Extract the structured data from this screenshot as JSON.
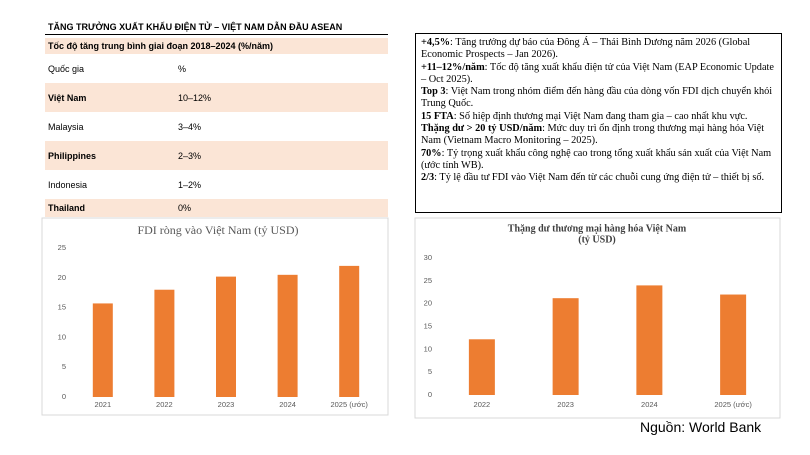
{
  "table": {
    "title": "TĂNG TRƯỞNG XUẤT KHẨU ĐIỆN TỬ  – VIỆT NAM DẪN ĐẦU ASEAN",
    "subtitle": "Tốc độ tăng trung bình giai đoạn 2018–2024 (%/năm)",
    "header": [
      "Quốc gia",
      "%"
    ],
    "rows": [
      [
        "Việt Nam",
        "10–12%"
      ],
      [
        "Malaysia",
        "3–4%"
      ],
      [
        "Philippines",
        "2–3%"
      ],
      [
        "Indonesia",
        "1–2%"
      ],
      [
        "Thailand",
        "0%"
      ]
    ]
  },
  "notes": [
    {
      "bold": "+4,5%",
      "text": ": Tăng trưởng dự báo của Đông Á – Thái Bình Dương năm 2026 (Global Economic Prospects – Jan 2026)."
    },
    {
      "bold": "+11–12%/năm",
      "text": ": Tốc độ tăng xuất khẩu điện tử của Việt Nam (EAP Economic Update – Oct 2025)."
    },
    {
      "bold": "Top 3",
      "text": ": Việt Nam trong nhóm điểm đến hàng đầu của dòng vốn FDI dịch chuyển khỏi Trung Quốc."
    },
    {
      "bold": "15 FTA",
      "text": ": Số hiệp định thương mại Việt Nam đang tham gia – cao nhất khu vực."
    },
    {
      "bold": "Thặng dư > 20 tỷ USD/năm",
      "text": ": Mức duy trì ổn định trong thương mại hàng hóa Việt Nam (Vietnam Macro Monitoring – 2025)."
    },
    {
      "bold": "70%",
      "text": ": Tỷ trọng xuất khẩu công nghệ cao trong tổng xuất khẩu sản xuất của Việt Nam (ước tính WB)."
    },
    {
      "bold": "2/3",
      "text": ": Tỷ lệ đầu tư FDI vào Việt Nam đến từ các chuỗi cung ứng điện tử – thiết bị số."
    }
  ],
  "chart_data": [
    {
      "type": "bar",
      "title": "FDI ròng vào Việt Nam (tỷ USD)",
      "categories": [
        "2021",
        "2022",
        "2023",
        "2024",
        "2025 (ước)"
      ],
      "values": [
        15.7,
        18,
        20.2,
        20.5,
        22
      ],
      "color": "#ed7d31",
      "ylim": [
        0,
        25
      ],
      "yticks": [
        0,
        5,
        10,
        15,
        20,
        25
      ],
      "grid": false
    },
    {
      "type": "bar",
      "title": "Thặng dư thương mại hàng hóa Việt Nam",
      "subtitle": "(tỷ USD)",
      "categories": [
        "2022",
        "2023",
        "2024",
        "2025 (ước)"
      ],
      "values": [
        12.2,
        21.2,
        24,
        22
      ],
      "color": "#ed7d31",
      "ylim": [
        0,
        30
      ],
      "yticks": [
        0,
        5,
        10,
        15,
        20,
        25,
        30
      ],
      "grid": false
    }
  ],
  "source": "Nguồn: World Bank"
}
